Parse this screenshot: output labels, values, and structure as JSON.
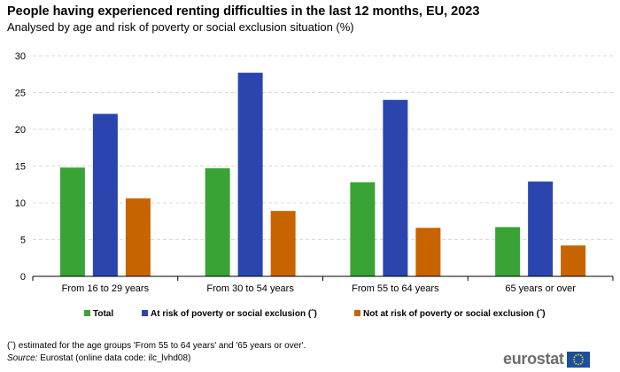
{
  "header": {
    "title": "People having experienced renting difficulties in the last 12 months, EU, 2023",
    "subtitle": "Analysed by age and risk of poverty or social exclusion situation (%)"
  },
  "footer": {
    "note": "(ˆ) estimated for the age groups 'From 55 to 64 years' and '65 years or over'.",
    "source_label": "Source:",
    "source_text": " Eurostat (online data code: ilc_lvhd08)",
    "logo_text": "eurostat"
  },
  "colors": {
    "total": "#3aa335",
    "at_risk": "#2a46ae",
    "not_at_risk": "#c86400",
    "grid": "#d9d9d9",
    "axis": "#000000"
  },
  "chart_data": {
    "type": "bar",
    "title": "People having experienced renting difficulties in the last 12 months, EU, 2023",
    "subtitle": "Analysed by age and risk of poverty or social exclusion situation (%)",
    "xlabel": "",
    "ylabel": "",
    "ylim": [
      0,
      30
    ],
    "yticks": [
      0,
      5,
      10,
      15,
      20,
      25,
      30
    ],
    "grid": true,
    "legend_position": "bottom",
    "categories": [
      "From 16 to 29 years",
      "From 30 to 54 years",
      "From 55 to 64 years",
      "65 years or over"
    ],
    "series": [
      {
        "name": "Total",
        "color": "#3aa335",
        "values": [
          14.8,
          14.7,
          12.8,
          6.7
        ]
      },
      {
        "name": "At risk of poverty or social exclusion (ˆ)",
        "color": "#2a46ae",
        "values": [
          22.1,
          27.7,
          24.0,
          12.9
        ]
      },
      {
        "name": "Not at risk of poverty or social exclusion (ˆ)",
        "color": "#c86400",
        "values": [
          10.6,
          8.9,
          6.6,
          4.2
        ]
      }
    ]
  }
}
